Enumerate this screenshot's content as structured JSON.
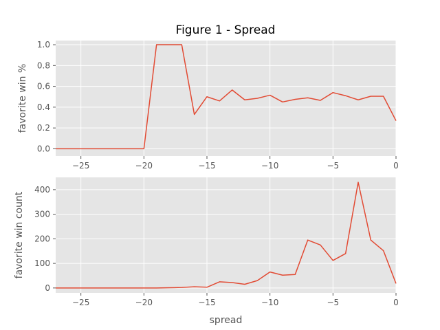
{
  "chart_data": [
    {
      "type": "line",
      "title": "Figure 1 - Spread",
      "xlabel": "",
      "ylabel": "favorite win %",
      "xlim": [
        -27,
        0
      ],
      "ylim": [
        -0.07,
        1.04
      ],
      "xticks": [
        -25,
        -20,
        -15,
        -10,
        -5,
        0
      ],
      "xtick_labels": [
        "−25",
        "−20",
        "−15",
        "−10",
        "−5",
        "0"
      ],
      "yticks": [
        0.0,
        0.2,
        0.4,
        0.6,
        0.8,
        1.0
      ],
      "ytick_labels": [
        "0.0",
        "0.2",
        "0.4",
        "0.6",
        "0.8",
        "1.0"
      ],
      "grid": true,
      "series": [
        {
          "color": "#e24a33",
          "x": [
            -27,
            -20,
            -19,
            -18,
            -17,
            -16,
            -15,
            -14,
            -13,
            -12,
            -11,
            -10,
            -9,
            -8,
            -7,
            -6,
            -5,
            -4,
            -3,
            -2,
            -1,
            0
          ],
          "y": [
            0.0,
            0.0,
            1.0,
            1.0,
            1.0,
            0.33,
            0.5,
            0.46,
            0.565,
            0.47,
            0.485,
            0.515,
            0.45,
            0.475,
            0.49,
            0.465,
            0.54,
            0.51,
            0.47,
            0.505,
            0.505,
            0.27
          ]
        }
      ]
    },
    {
      "type": "line",
      "title": "",
      "xlabel": "spread",
      "ylabel": "favorite win count",
      "xlim": [
        -27,
        0
      ],
      "ylim": [
        -20,
        450
      ],
      "xticks": [
        -25,
        -20,
        -15,
        -10,
        -5,
        0
      ],
      "xtick_labels": [
        "−25",
        "−20",
        "−15",
        "−10",
        "−5",
        "0"
      ],
      "yticks": [
        0,
        100,
        200,
        300,
        400
      ],
      "ytick_labels": [
        "0",
        "100",
        "200",
        "300",
        "400"
      ],
      "grid": true,
      "series": [
        {
          "color": "#e24a33",
          "x": [
            -27,
            -20,
            -19,
            -18,
            -17,
            -16,
            -15,
            -14,
            -13,
            -12,
            -11,
            -10,
            -9,
            -8,
            -7,
            -6,
            -5,
            -4,
            -3,
            -2,
            -1,
            0
          ],
          "y": [
            0,
            0,
            0,
            1,
            2,
            5,
            3,
            25,
            22,
            15,
            30,
            65,
            52,
            55,
            195,
            175,
            112,
            140,
            430,
            195,
            152,
            18
          ]
        }
      ]
    }
  ]
}
